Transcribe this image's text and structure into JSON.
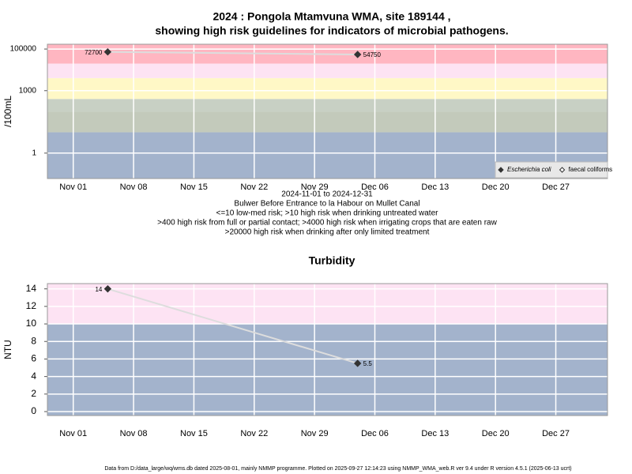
{
  "chart_data": [
    {
      "type": "line",
      "title": [
        "2024 : Pongola Mtamvuna WMA, site 189144 ,",
        "showing high risk guidelines for indicators of microbial pathogens."
      ],
      "notes": [
        "2024-11-01 to 2024-12-31",
        "Bulwer Before Entrance to la Habour on Mullet Canal",
        "<=10 low-med risk; >10 high risk when drinking untreated water",
        ">400 high risk from full or partial contact; >4000 high risk when irrigating crops that are eaten raw",
        ">20000 high risk when drinking after only limited treatment"
      ],
      "y_label": "/100mL",
      "log_y": true,
      "x": [
        "2024-11-05",
        "2024-12-04"
      ],
      "series": [
        {
          "name": "Escherichia coli",
          "color": "#333333",
          "marker": "filled",
          "italic": true,
          "values": [
            72700,
            54750
          ]
        },
        {
          "name": "faecal coliforms",
          "color": "#333333",
          "marker": "open",
          "italic": false,
          "values": [
            null,
            null
          ]
        }
      ],
      "line_color": "#dddddd",
      "xlim": [
        "2024-10-29",
        "2025-01-02"
      ],
      "xticks": [
        {
          "value": "2024-11-01",
          "label": "Nov 01"
        },
        {
          "value": "2024-11-08",
          "label": "Nov 08"
        },
        {
          "value": "2024-11-15",
          "label": "Nov 15"
        },
        {
          "value": "2024-11-22",
          "label": "Nov 22"
        },
        {
          "value": "2024-11-29",
          "label": "Nov 29"
        },
        {
          "value": "2024-12-06",
          "label": "Dec 06"
        },
        {
          "value": "2024-12-13",
          "label": "Dec 13"
        },
        {
          "value": "2024-12-20",
          "label": "Dec 20"
        },
        {
          "value": "2024-12-27",
          "label": "Dec 27"
        }
      ],
      "ylim": [
        0.06,
        170000
      ],
      "yticks": [
        1,
        1000,
        100000
      ],
      "band_edges": [
        10,
        100,
        400,
        4000,
        20000
      ],
      "band_colors": [
        "#a3b3cc",
        "#c3cabb",
        "#c8d0c4",
        "#fff8c6",
        "#fde3f3",
        "#ffb6c1"
      ],
      "legend": "bottom-right"
    },
    {
      "type": "line",
      "title": [
        "Turbidity"
      ],
      "y_label": "NTU",
      "log_y": false,
      "x": [
        "2024-11-05",
        "2024-12-04"
      ],
      "series": [
        {
          "color": "#333333",
          "marker": "filled",
          "values": [
            14,
            5.5
          ]
        }
      ],
      "line_color": "#dddddd",
      "xlim": [
        "2024-10-29",
        "2025-01-02"
      ],
      "xticks": [
        {
          "value": "2024-11-01",
          "label": "Nov 01"
        },
        {
          "value": "2024-11-08",
          "label": "Nov 08"
        },
        {
          "value": "2024-11-15",
          "label": "Nov 15"
        },
        {
          "value": "2024-11-22",
          "label": "Nov 22"
        },
        {
          "value": "2024-11-29",
          "label": "Nov 29"
        },
        {
          "value": "2024-12-06",
          "label": "Dec 06"
        },
        {
          "value": "2024-12-13",
          "label": "Dec 13"
        },
        {
          "value": "2024-12-20",
          "label": "Dec 20"
        },
        {
          "value": "2024-12-27",
          "label": "Dec 27"
        }
      ],
      "ylim": [
        -0.45,
        14.6
      ],
      "yticks": [
        0,
        2,
        4,
        6,
        8,
        10,
        12,
        14
      ],
      "band_edges": [
        10
      ],
      "band_colors": [
        "#a3b3cc",
        "#fde3f3"
      ]
    }
  ],
  "footer": "Data from D:/data_large/wq/wms.db dated 2025-08-01, mainly NMMP programme. Plotted on 2025-09-27 12:14:23 using NMMP_WMA_web.R ver 9.4 under R version 4.5.1 (2025-06-13 ucrt)"
}
